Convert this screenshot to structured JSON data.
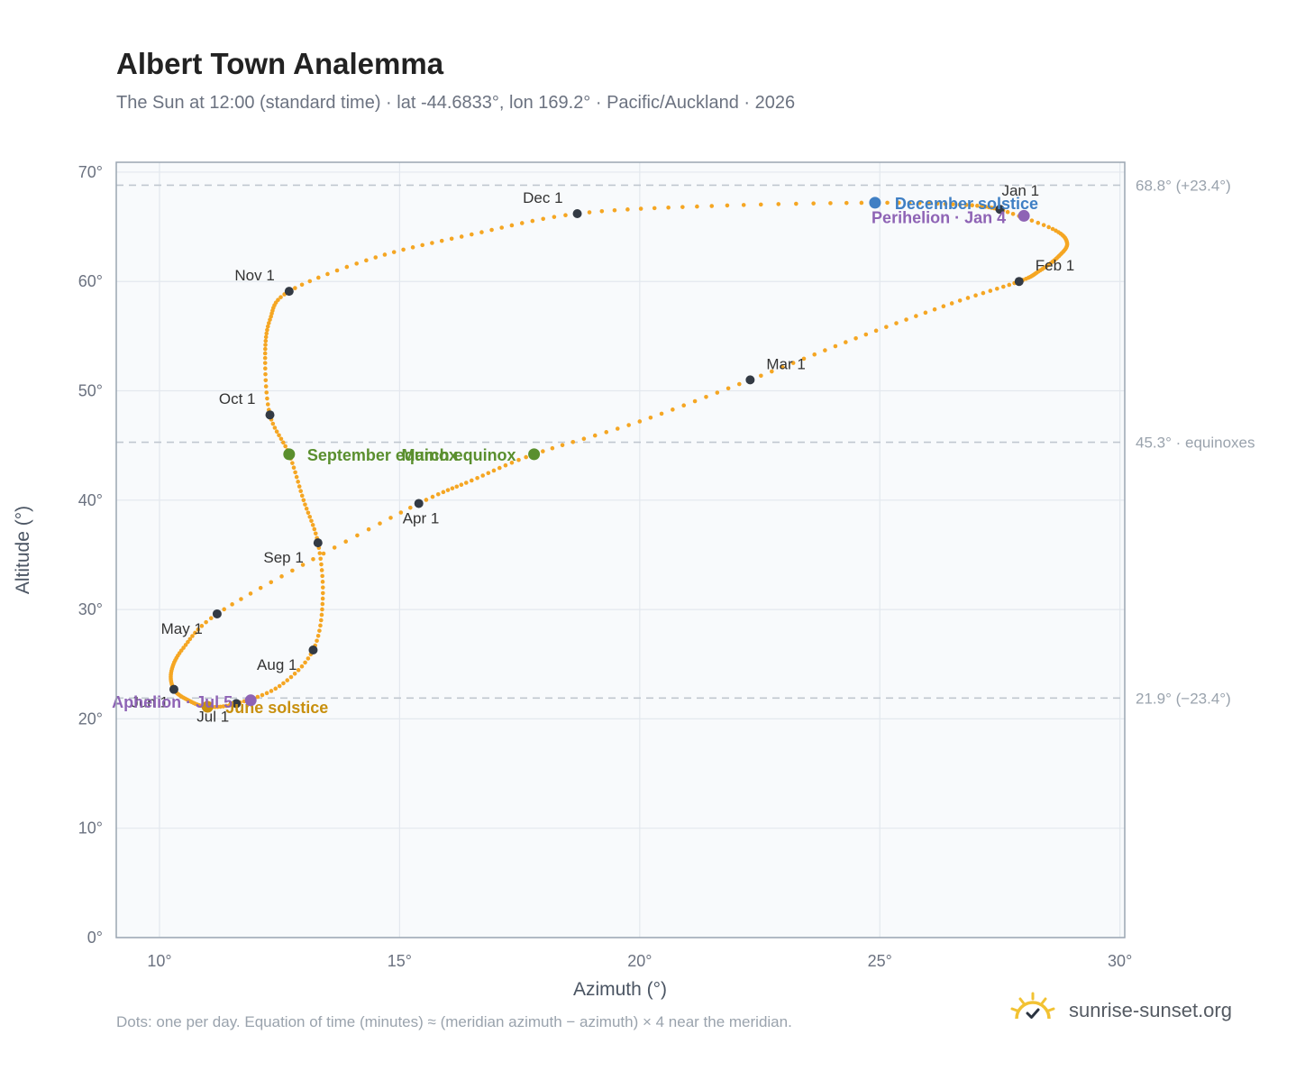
{
  "title": "Albert Town Analemma",
  "subtitle": "The Sun at 12:00 (standard time) · lat -44.6833°, lon 169.2° · Pacific/Auckland · 2026",
  "footnote": "Dots: one per day. Equation of time (minutes) ≈ (meridian azimuth − azimuth) × 4 near the meridian.",
  "brand": {
    "text": "sunrise-sunset.org",
    "logo_icon": "sun-icon"
  },
  "colors": {
    "curve": "#f5a623",
    "month_dot": "#333a44",
    "equinox": "#5a8f2e",
    "december_solstice": "#3f7fc4",
    "june_solstice": "#c8900f",
    "apsis": "#8e63b5",
    "reference_line": "#c0c7cf",
    "plot_bg": "#f8fafc",
    "grid": "#e3e8ee",
    "frame": "#9aa6b2"
  },
  "chart_data": {
    "type": "scatter",
    "title": "Albert Town Analemma",
    "xlabel": "Azimuth (°)",
    "ylabel": "Altitude (°)",
    "xlim": [
      9.1,
      30.1
    ],
    "ylim": [
      0,
      70.9
    ],
    "x_ticks": [
      10,
      15,
      20,
      25,
      30
    ],
    "y_ticks": [
      0,
      10,
      20,
      30,
      40,
      50,
      60,
      70
    ],
    "x_tick_labels": [
      "10°",
      "15°",
      "20°",
      "25°",
      "30°"
    ],
    "y_tick_labels": [
      "0°",
      "10°",
      "20°",
      "30°",
      "40°",
      "50°",
      "60°",
      "70°"
    ],
    "grid": true,
    "series_note": "one dot per day, approximate",
    "month_starts": [
      {
        "label": "Jan 1",
        "x": 27.5,
        "y": 66.6
      },
      {
        "label": "Feb 1",
        "x": 27.9,
        "y": 60.0
      },
      {
        "label": "Mar 1",
        "x": 22.3,
        "y": 51.0
      },
      {
        "label": "Apr 1",
        "x": 15.4,
        "y": 39.7
      },
      {
        "label": "May 1",
        "x": 11.2,
        "y": 29.6
      },
      {
        "label": "Jun 1",
        "x": 10.3,
        "y": 22.7
      },
      {
        "label": "Jul 1",
        "x": 11.6,
        "y": 21.4
      },
      {
        "label": "Aug 1",
        "x": 13.2,
        "y": 26.3
      },
      {
        "label": "Sep 1",
        "x": 13.3,
        "y": 36.1
      },
      {
        "label": "Oct 1",
        "x": 12.3,
        "y": 47.8
      },
      {
        "label": "Nov 1",
        "x": 12.7,
        "y": 59.1
      },
      {
        "label": "Dec 1",
        "x": 18.7,
        "y": 66.2
      }
    ],
    "events": [
      {
        "label": "March equinox",
        "x": 17.8,
        "y": 44.2,
        "color_key": "equinox"
      },
      {
        "label": "September equinox",
        "x": 12.7,
        "y": 44.2,
        "color_key": "equinox"
      },
      {
        "label": "December solstice",
        "x": 24.9,
        "y": 67.2,
        "color_key": "december_solstice"
      },
      {
        "label": "June solstice",
        "x": 11.0,
        "y": 21.1,
        "color_key": "june_solstice"
      },
      {
        "label": "Perihelion · Jan 4",
        "x": 28.0,
        "y": 66.0,
        "color_key": "apsis"
      },
      {
        "label": "Aphelion · Jul 5",
        "x": 11.9,
        "y": 21.7,
        "color_key": "apsis"
      }
    ],
    "reference_lines": [
      {
        "label": "68.8° (+23.4°)",
        "y": 68.8
      },
      {
        "label": "45.3° · equinoxes",
        "y": 45.3
      },
      {
        "label": "21.9° (−23.4°)",
        "y": 21.9
      }
    ],
    "curve_anchors": [
      [
        27.5,
        66.6
      ],
      [
        28.6,
        64.8
      ],
      [
        28.9,
        63.5
      ],
      [
        28.7,
        62.2
      ],
      [
        28.3,
        60.9
      ],
      [
        27.9,
        60.0
      ],
      [
        26.5,
        58.0
      ],
      [
        24.5,
        54.8
      ],
      [
        22.3,
        51.0
      ],
      [
        20.0,
        47.2
      ],
      [
        17.8,
        44.2
      ],
      [
        16.5,
        41.8
      ],
      [
        15.4,
        39.7
      ],
      [
        13.2,
        34.6
      ],
      [
        11.2,
        29.6
      ],
      [
        10.5,
        26.5
      ],
      [
        10.25,
        24.4
      ],
      [
        10.3,
        22.7
      ],
      [
        10.6,
        21.7
      ],
      [
        11.0,
        21.1
      ],
      [
        11.6,
        21.4
      ],
      [
        12.5,
        23.0
      ],
      [
        13.2,
        26.3
      ],
      [
        13.4,
        31.0
      ],
      [
        13.3,
        36.1
      ],
      [
        13.0,
        40.0
      ],
      [
        12.7,
        44.2
      ],
      [
        12.3,
        47.8
      ],
      [
        12.2,
        53.0
      ],
      [
        12.3,
        56.5
      ],
      [
        12.7,
        59.1
      ],
      [
        14.5,
        62.2
      ],
      [
        16.5,
        64.3
      ],
      [
        18.7,
        66.2
      ],
      [
        21.5,
        66.9
      ],
      [
        24.9,
        67.2
      ],
      [
        26.8,
        67.0
      ],
      [
        27.5,
        66.6
      ]
    ]
  }
}
